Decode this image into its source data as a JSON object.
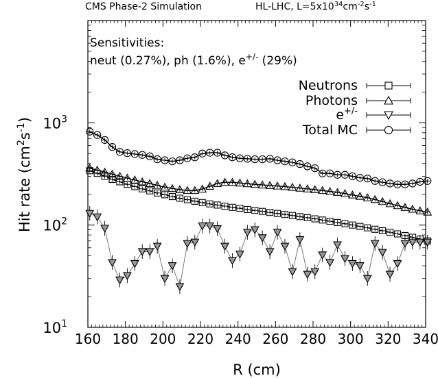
{
  "header": {
    "left": "CMS Phase-2 Simulation",
    "right_prefix": "HL-LHC, L=5x10",
    "right_exp": "34",
    "right_mid": "cm",
    "right_exp2": "-2",
    "right_s": "s",
    "right_exp3": "-1"
  },
  "annotation": {
    "line1": "Sensitivities:",
    "line2_prefix": "neut (0.27%), ph (1.6%), e",
    "line2_sup": "+/-",
    "line2_suffix": " (29%)"
  },
  "chart_data": {
    "type": "scatter",
    "xlabel": "R (cm)",
    "ylabel": "Hit  rate (cm²s⁻¹)",
    "ylabel_parts": {
      "base": "Hit  rate (cm",
      "sup1": "2",
      "mid": "s",
      "sup2": "-1",
      "end": ")"
    },
    "xlim": [
      160,
      340
    ],
    "ylim": [
      10,
      10000
    ],
    "yscale": "log",
    "x_ticks": [
      160,
      180,
      200,
      220,
      240,
      260,
      280,
      300,
      320,
      340
    ],
    "y_ticks": [
      {
        "base": "10",
        "exp": "1",
        "value": 10
      },
      {
        "base": "10",
        "exp": "2",
        "value": 100
      },
      {
        "base": "10",
        "exp": "3",
        "value": 1000
      }
    ],
    "legend_position": "top-right",
    "x": [
      161,
      165,
      169,
      173,
      177,
      181,
      185,
      189,
      193,
      197,
      201,
      205,
      209,
      213,
      217,
      221,
      225,
      229,
      233,
      237,
      241,
      245,
      249,
      253,
      257,
      261,
      265,
      269,
      273,
      277,
      281,
      285,
      289,
      293,
      297,
      301,
      305,
      309,
      313,
      317,
      321,
      325,
      329,
      333,
      337,
      341
    ],
    "series": [
      {
        "name": "Neutrons",
        "marker": "square",
        "values": [
          340,
          320,
          300,
          280,
          265,
          250,
          238,
          226,
          216,
          206,
          198,
          190,
          183,
          177,
          171,
          166,
          161,
          157,
          153,
          149,
          146,
          142,
          139,
          136,
          133,
          130,
          127,
          124,
          121,
          118,
          115,
          112,
          109,
          106,
          103,
          100,
          97,
          94,
          91,
          88,
          85,
          82,
          79,
          76,
          73,
          70
        ]
      },
      {
        "name": "Photons",
        "marker": "triangle-up",
        "values": [
          360,
          345,
          330,
          315,
          300,
          288,
          276,
          265,
          255,
          245,
          235,
          228,
          222,
          218,
          218,
          225,
          240,
          255,
          262,
          262,
          258,
          254,
          250,
          247,
          244,
          241,
          238,
          234,
          230,
          226,
          222,
          218,
          213,
          209,
          203,
          197,
          191,
          185,
          178,
          170,
          162,
          155,
          149,
          143,
          138,
          134
        ]
      },
      {
        "name": "e+/-",
        "legend_label": "e",
        "legend_sup": "+/-",
        "marker": "triangle-down",
        "values": [
          130,
          120,
          93,
          43,
          29,
          32,
          42,
          55,
          55,
          62,
          30,
          40,
          25,
          66,
          68,
          98,
          98,
          92,
          62,
          45,
          52,
          85,
          90,
          75,
          55,
          85,
          62,
          35,
          72,
          33,
          35,
          51,
          43,
          64,
          47,
          42,
          40,
          30,
          66,
          54,
          33,
          42,
          66,
          68,
          68,
          68
        ]
      },
      {
        "name": "Total MC",
        "marker": "circle",
        "values": [
          820,
          760,
          680,
          580,
          520,
          505,
          495,
          485,
          470,
          440,
          430,
          420,
          430,
          450,
          460,
          500,
          510,
          510,
          480,
          460,
          450,
          445,
          440,
          440,
          445,
          430,
          420,
          410,
          395,
          375,
          360,
          320,
          320,
          310,
          310,
          300,
          290,
          285,
          270,
          262,
          255,
          250,
          250,
          255,
          265,
          270
        ]
      }
    ]
  }
}
